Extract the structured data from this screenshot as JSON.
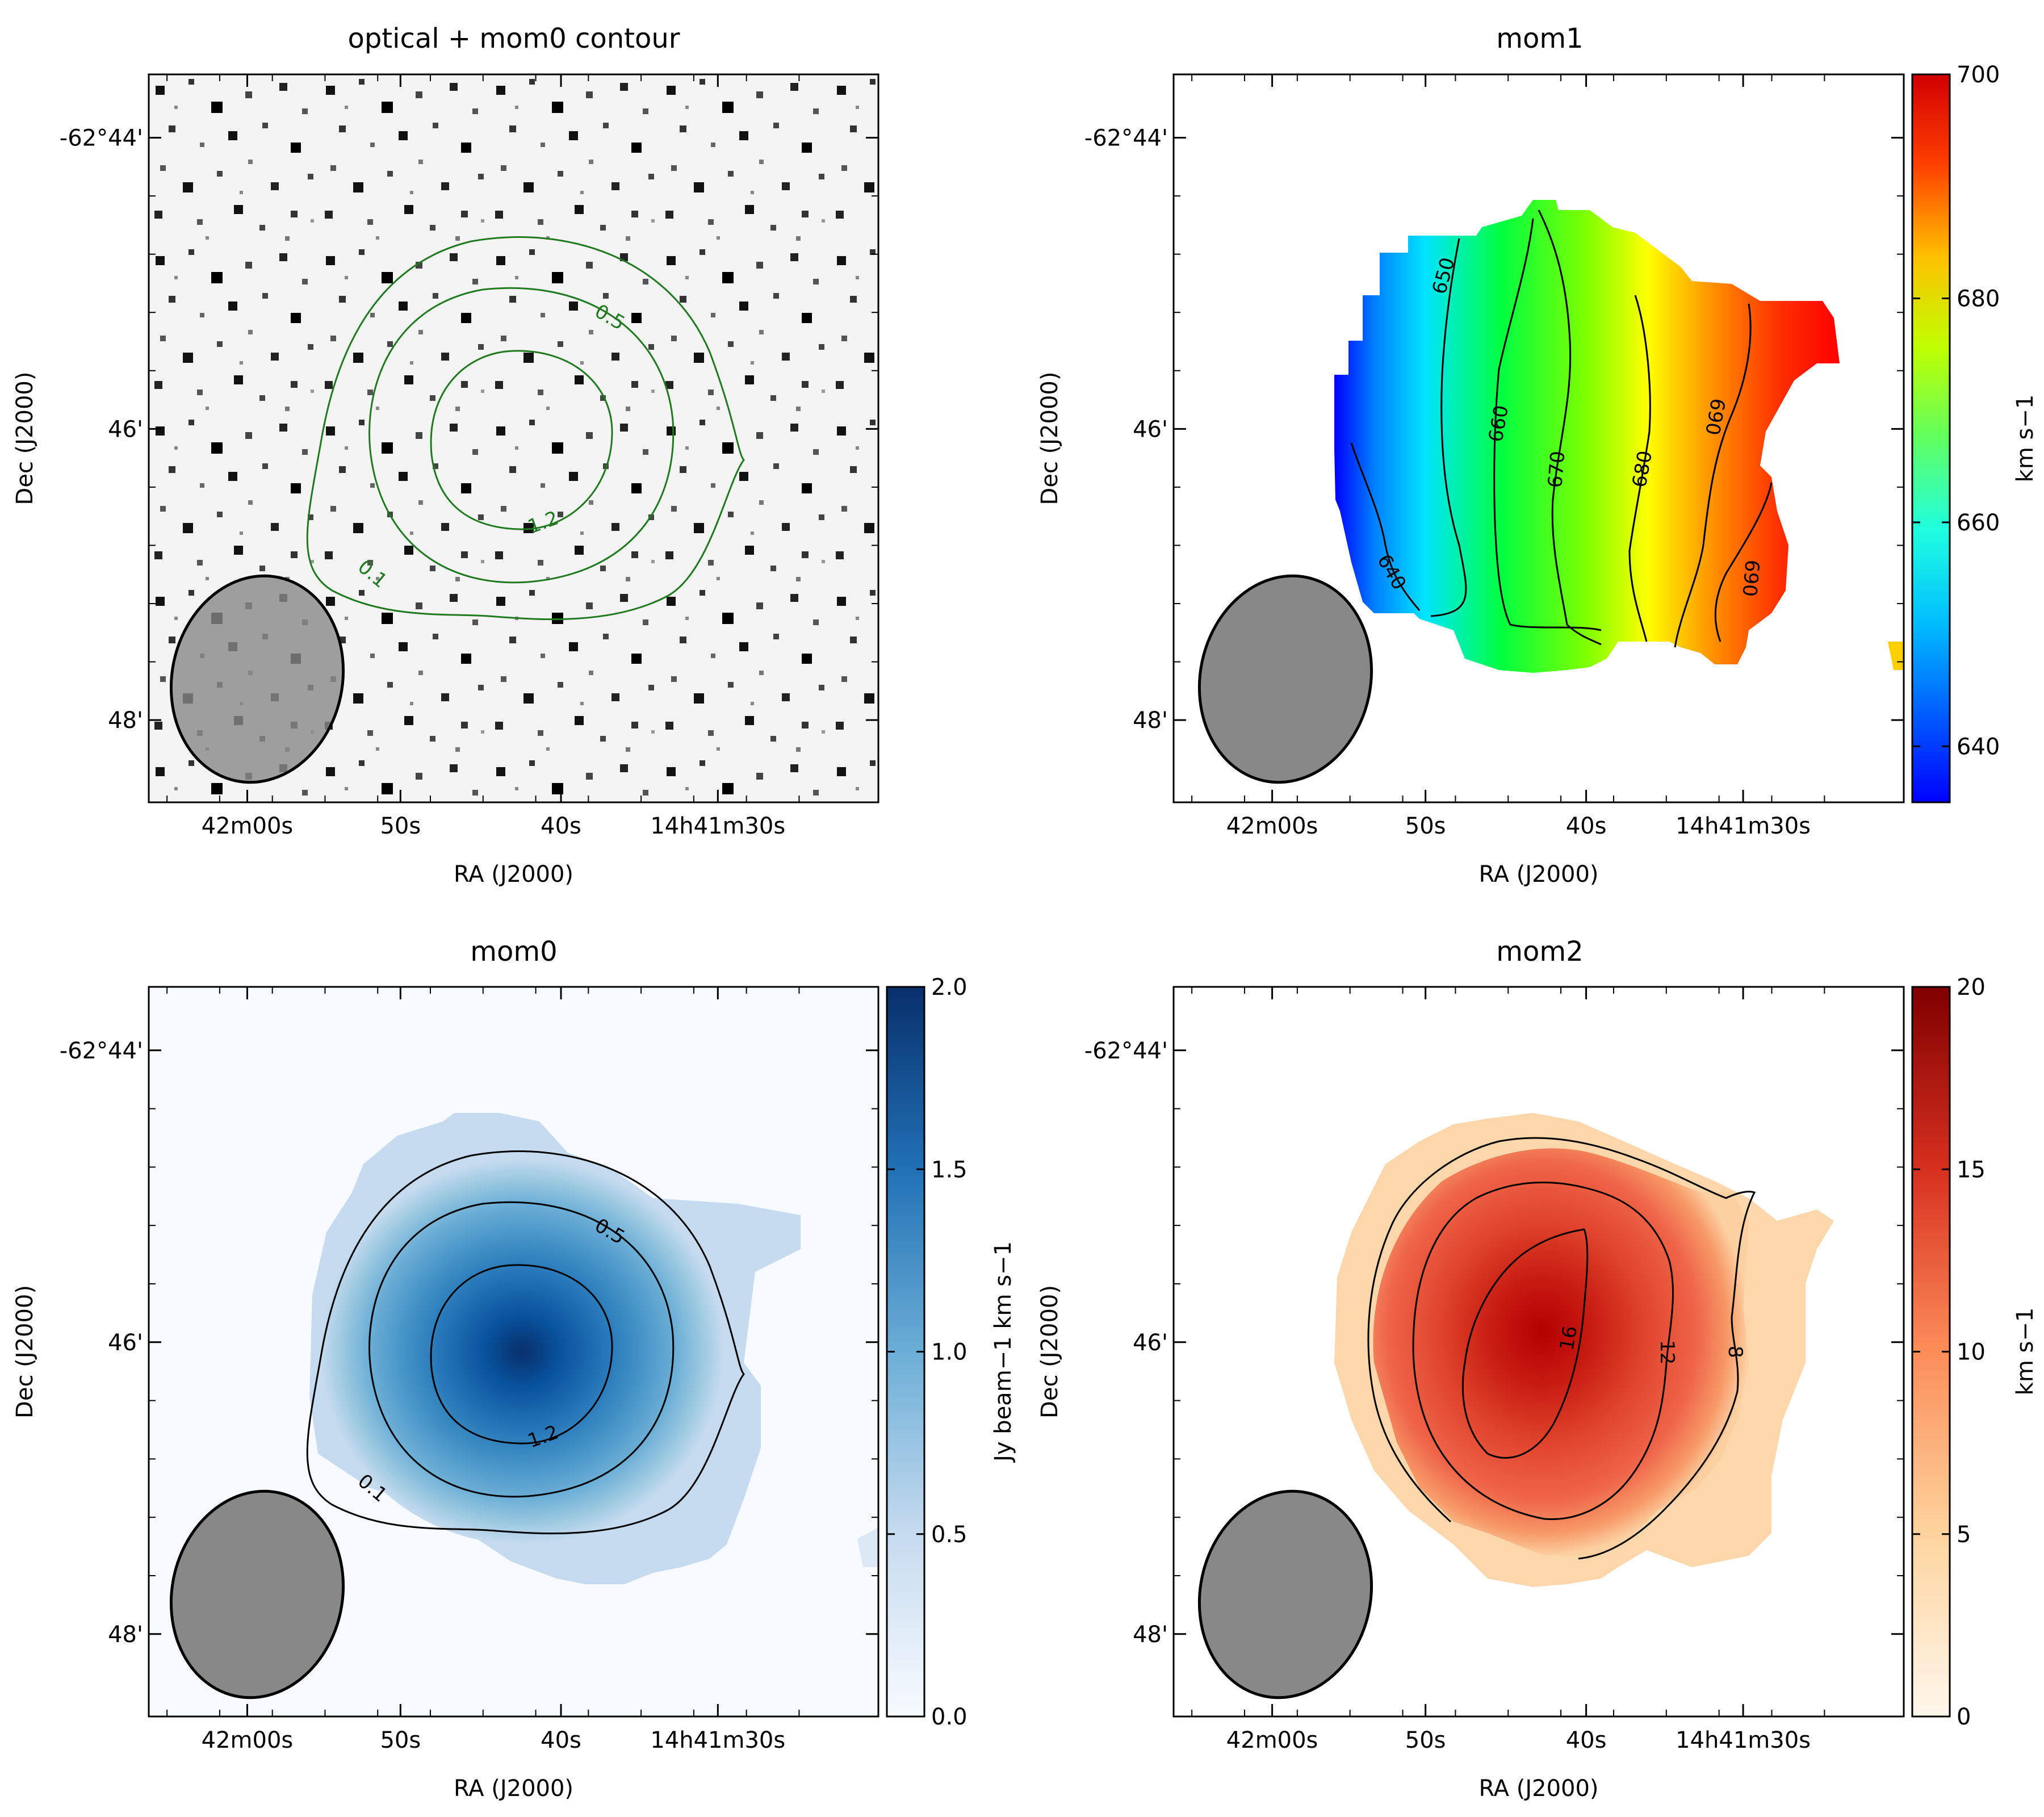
{
  "figure": {
    "xlabel": "RA (J2000)",
    "ylabel": "Dec (J2000)",
    "ra_ticks": [
      "42m00s",
      "50s",
      "40s",
      "14h41m30s"
    ],
    "dec_ticks": [
      "-62°44'",
      "46'",
      "48'"
    ]
  },
  "chart_data": [
    {
      "type": "heatmap",
      "title": "optical + mom0 contour",
      "background": "optical image (grayscale, inverted)",
      "contours": {
        "color": "#1f7a1f",
        "levels": [
          0.1,
          0.5,
          1.2
        ],
        "labels": [
          "0.1",
          "0.5",
          "1.2"
        ]
      },
      "beam": {
        "shape": "ellipse",
        "fill": "#888888",
        "alpha": 0.8
      }
    },
    {
      "type": "heatmap",
      "title": "mom1",
      "colormap": "jet",
      "colorbar": {
        "min": 635,
        "max": 700,
        "ticks": [
          640,
          660,
          680,
          700
        ],
        "label": "km s−1"
      },
      "contours": {
        "color": "#000000",
        "levels": [
          640,
          650,
          660,
          670,
          680,
          690
        ],
        "labels": [
          "640",
          "650",
          "660",
          "670",
          "680",
          "690",
          "690"
        ]
      },
      "trend": "velocity increases from east (left, ~637) to west (right, ~698)",
      "beam": {
        "shape": "ellipse",
        "fill": "#888888"
      }
    },
    {
      "type": "heatmap",
      "title": "mom0",
      "colormap": "Blues",
      "colorbar": {
        "min": 0.0,
        "max": 2.0,
        "ticks": [
          "0.0",
          "0.5",
          "1.0",
          "1.5",
          "2.0"
        ],
        "label": "Jy beam−1 km s−1"
      },
      "peak": 1.95,
      "contours": {
        "color": "#000000",
        "levels": [
          0.1,
          0.5,
          1.2
        ],
        "labels": [
          "0.1",
          "0.5",
          "1.2"
        ]
      },
      "beam": {
        "shape": "ellipse",
        "fill": "#888888"
      }
    },
    {
      "type": "heatmap",
      "title": "mom2",
      "colormap": "OrRd",
      "colorbar": {
        "min": 0,
        "max": 20,
        "ticks": [
          0,
          5,
          10,
          15,
          20
        ],
        "label": "km s−1"
      },
      "peak": 18,
      "contours": {
        "color": "#000000",
        "levels": [
          8,
          12,
          16
        ],
        "labels": [
          "8",
          "12",
          "16"
        ]
      },
      "beam": {
        "shape": "ellipse",
        "fill": "#888888"
      }
    }
  ]
}
